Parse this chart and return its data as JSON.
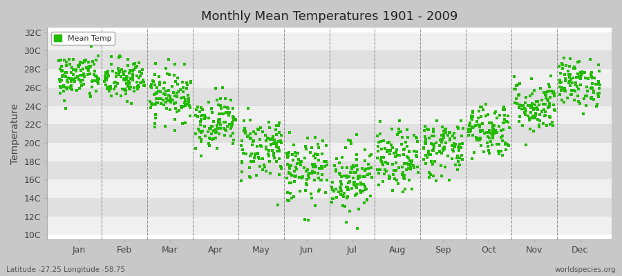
{
  "title": "Monthly Mean Temperatures 1901 - 2009",
  "ylabel": "Temperature",
  "xlabel_months": [
    "Jan",
    "Feb",
    "Mar",
    "Apr",
    "May",
    "Jun",
    "Jul",
    "Aug",
    "Sep",
    "Oct",
    "Nov",
    "Dec"
  ],
  "ytick_labels": [
    "10C",
    "12C",
    "14C",
    "16C",
    "18C",
    "20C",
    "22C",
    "24C",
    "26C",
    "28C",
    "30C",
    "32C"
  ],
  "ytick_values": [
    10,
    12,
    14,
    16,
    18,
    20,
    22,
    24,
    26,
    28,
    30,
    32
  ],
  "ylim": [
    9.5,
    32.5
  ],
  "marker_color": "#22bb00",
  "marker": "s",
  "marker_size": 2.5,
  "legend_label": "Mean Temp",
  "footnote_left": "Latitude -27.25 Longitude -58.75",
  "footnote_right": "worldspecies.org",
  "fig_bg_color": "#c8c8c8",
  "plot_bg_color": "#ffffff",
  "band_color_even": "#f0f0f0",
  "band_color_odd": "#e0e0e0",
  "n_years": 109,
  "monthly_means": [
    27.2,
    26.8,
    25.2,
    22.3,
    19.5,
    16.8,
    16.2,
    18.0,
    19.5,
    21.5,
    24.0,
    26.5
  ],
  "monthly_stds": [
    1.3,
    1.2,
    1.4,
    1.4,
    1.8,
    1.8,
    1.9,
    1.7,
    1.6,
    1.5,
    1.5,
    1.3
  ],
  "seed": 42
}
